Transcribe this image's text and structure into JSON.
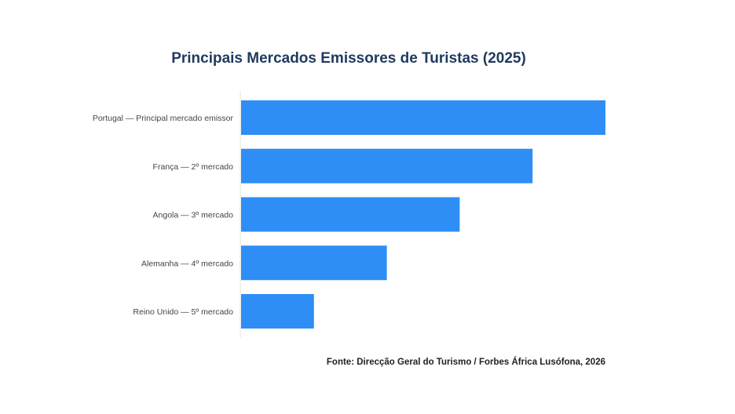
{
  "chart_data": {
    "type": "bar",
    "orientation": "horizontal",
    "title": "Principais Mercados Emissores de Turistas (2025)",
    "categories": [
      "Portugal — Principal mercado emissor",
      "França — 2º mercado",
      "Angola — 3º mercado",
      "Alemanha — 4º mercado",
      "Reino Unido — 5º mercado"
    ],
    "values": [
      5,
      4,
      3,
      2,
      1
    ],
    "xlim": [
      0,
      5
    ],
    "bar_color": "#2f8ef5",
    "axis_color": "#e0e0e0",
    "grid": false,
    "legend": "none",
    "source": "Fonte: Direcção Geral do Turismo / Forbes África Lusófona, 2026"
  }
}
